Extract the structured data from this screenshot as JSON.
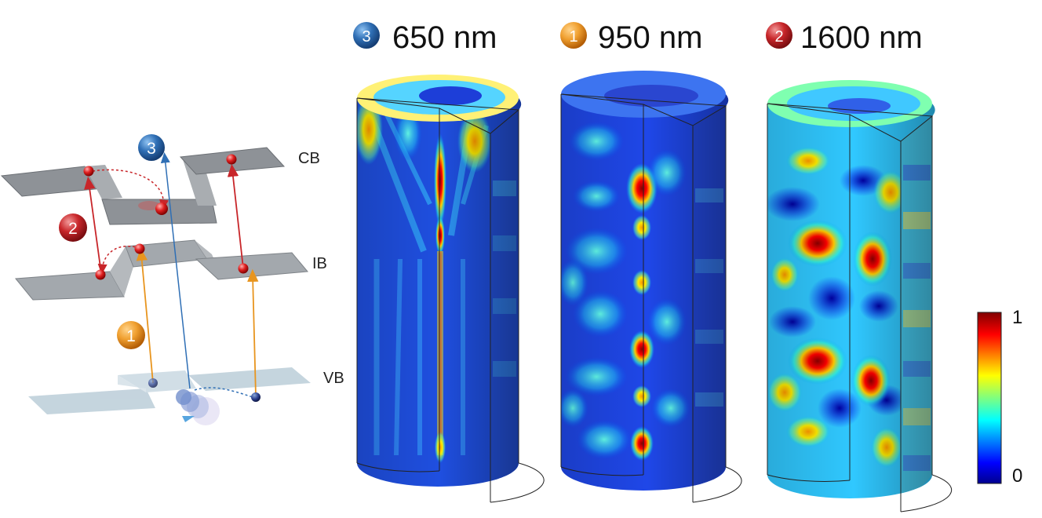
{
  "band_diagram": {
    "bands": {
      "cb": "CB",
      "ib": "IB",
      "vb": "VB"
    },
    "transitions": [
      {
        "id": "1",
        "color": "#f0a030"
      },
      {
        "id": "2",
        "color": "#c8262a"
      },
      {
        "id": "3",
        "color": "#2f6fb5"
      }
    ]
  },
  "field_maps": [
    {
      "badge": "3",
      "badge_color": "#2f6fb5",
      "wavelength": "650 nm"
    },
    {
      "badge": "1",
      "badge_color": "#f0a030",
      "wavelength": "950 nm"
    },
    {
      "badge": "2",
      "badge_color": "#c8262a",
      "wavelength": "1600 nm"
    }
  ],
  "colorbar": {
    "max_label": "1",
    "min_label": "0",
    "colormap": "jet"
  }
}
